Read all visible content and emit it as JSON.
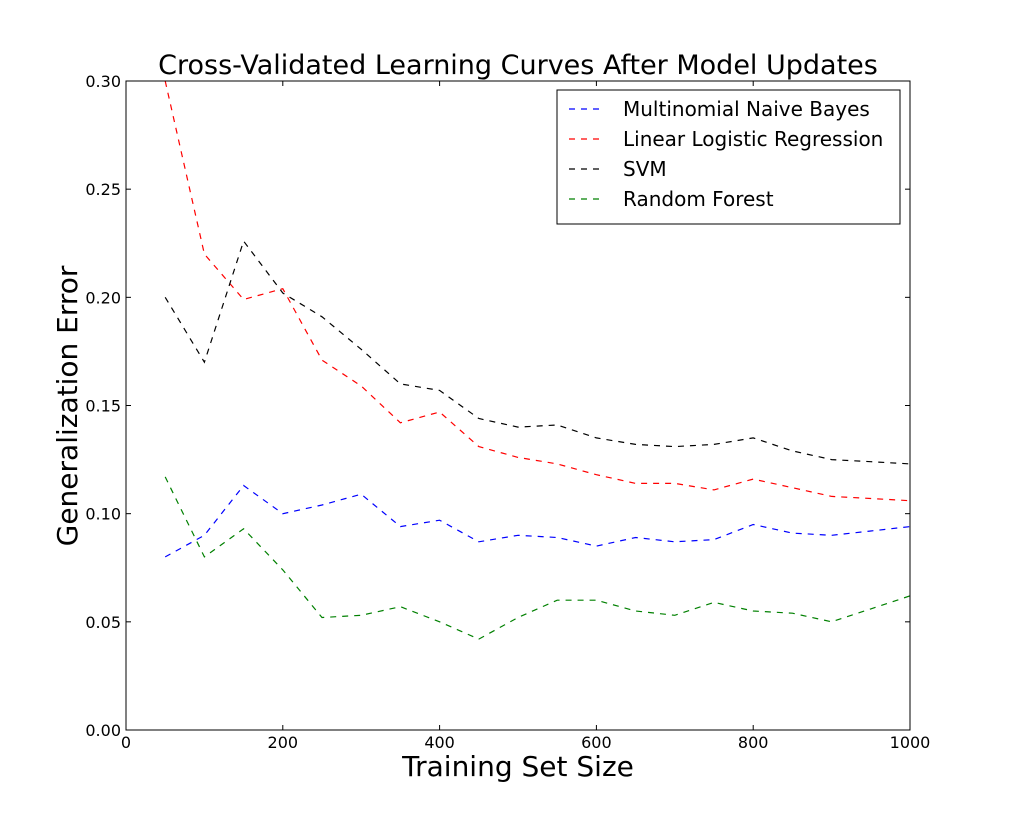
{
  "chart_data": {
    "type": "line",
    "title": "Cross-Validated Learning Curves After Model Updates",
    "xlabel": "Training Set Size",
    "ylabel": "Generalization Error",
    "xlim": [
      0,
      1000
    ],
    "ylim": [
      0.0,
      0.3
    ],
    "xticks": [
      "0",
      "200",
      "400",
      "600",
      "800",
      "1000"
    ],
    "yticks": [
      "0.00",
      "0.05",
      "0.10",
      "0.15",
      "0.20",
      "0.25",
      "0.30"
    ],
    "grid": false,
    "legend_position": "top-right",
    "line_style": "dashed",
    "x": [
      50,
      100,
      150,
      200,
      250,
      300,
      350,
      400,
      450,
      500,
      550,
      600,
      650,
      700,
      750,
      800,
      850,
      900,
      950,
      1000
    ],
    "series": [
      {
        "name": "Multinomial Naive Bayes",
        "color": "#0000ff",
        "values": [
          0.08,
          0.09,
          0.113,
          0.1,
          0.104,
          0.109,
          0.094,
          0.097,
          0.087,
          0.09,
          0.089,
          0.085,
          0.089,
          0.087,
          0.088,
          0.095,
          0.091,
          0.09,
          0.092,
          0.094
        ]
      },
      {
        "name": "Linear Logistic Regression",
        "color": "#ff0000",
        "values": [
          0.3,
          0.22,
          0.199,
          0.204,
          0.171,
          0.159,
          0.142,
          0.147,
          0.131,
          0.126,
          0.123,
          0.118,
          0.114,
          0.114,
          0.111,
          0.116,
          0.112,
          0.108,
          0.107,
          0.106
        ]
      },
      {
        "name": "SVM",
        "color": "#000000",
        "values": [
          0.2,
          0.17,
          0.226,
          0.202,
          0.191,
          0.176,
          0.16,
          0.157,
          0.144,
          0.14,
          0.141,
          0.135,
          0.132,
          0.131,
          0.132,
          0.135,
          0.129,
          0.125,
          0.124,
          0.123
        ]
      },
      {
        "name": "Random Forest",
        "color": "#008000",
        "values": [
          0.117,
          0.08,
          0.093,
          0.074,
          0.052,
          0.053,
          0.057,
          0.05,
          0.042,
          0.052,
          0.06,
          0.06,
          0.055,
          0.053,
          0.059,
          0.055,
          0.054,
          0.05,
          0.056,
          0.062
        ]
      }
    ]
  }
}
